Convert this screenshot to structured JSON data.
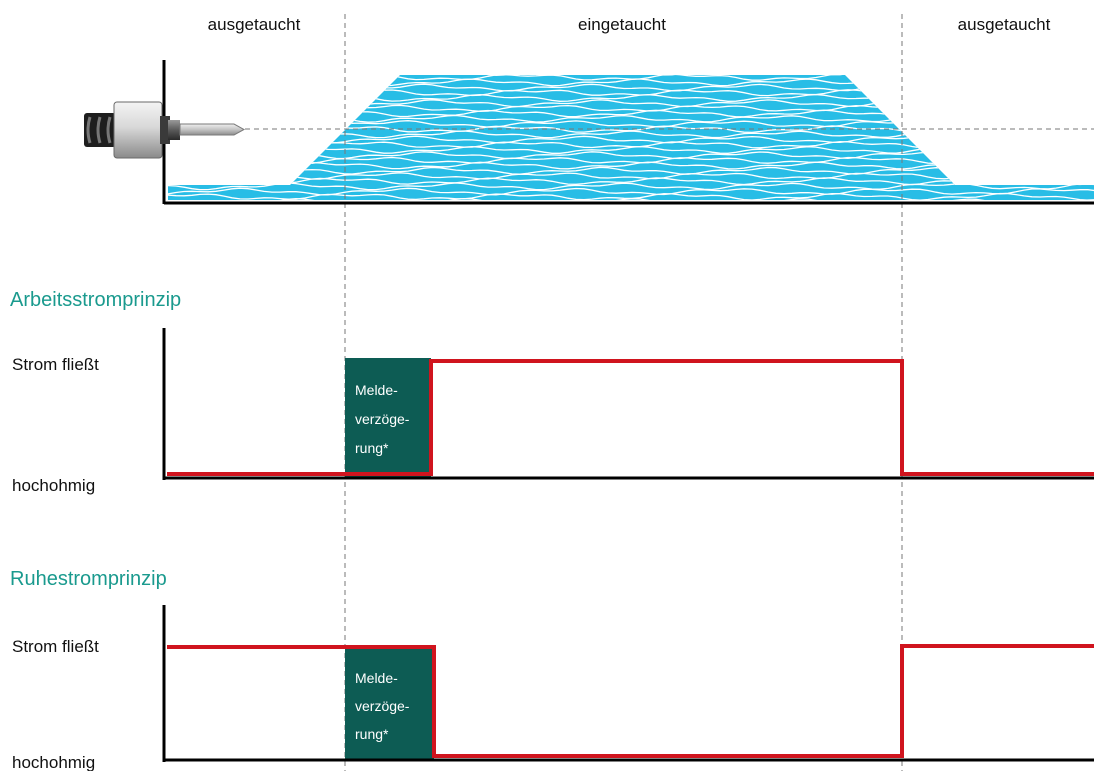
{
  "phases": {
    "left": "ausgetaucht",
    "middle": "eingetaucht",
    "right": "ausgetaucht"
  },
  "sections": {
    "arbeits": {
      "title": "Arbeitsstromprinzip",
      "high_label": "Strom fließt",
      "low_label": "hochohmig",
      "delay_line1": "Melde-",
      "delay_line2": "verzöge-",
      "delay_line3": "rung*"
    },
    "ruhe": {
      "title": "Ruhestromprinzip",
      "high_label": "Strom fließt",
      "low_label": "hochohmig",
      "delay_line1": "Melde-",
      "delay_line2": "verzöge-",
      "delay_line3": "rung*"
    }
  },
  "colors": {
    "section_title": "#1a9a8e",
    "signal": "#d0141e",
    "delay_box": "#0d5c54",
    "water": "#28bde6",
    "axis": "#000000",
    "guide": "#777777"
  },
  "icons": {
    "sensor": "level-probe-icon"
  }
}
